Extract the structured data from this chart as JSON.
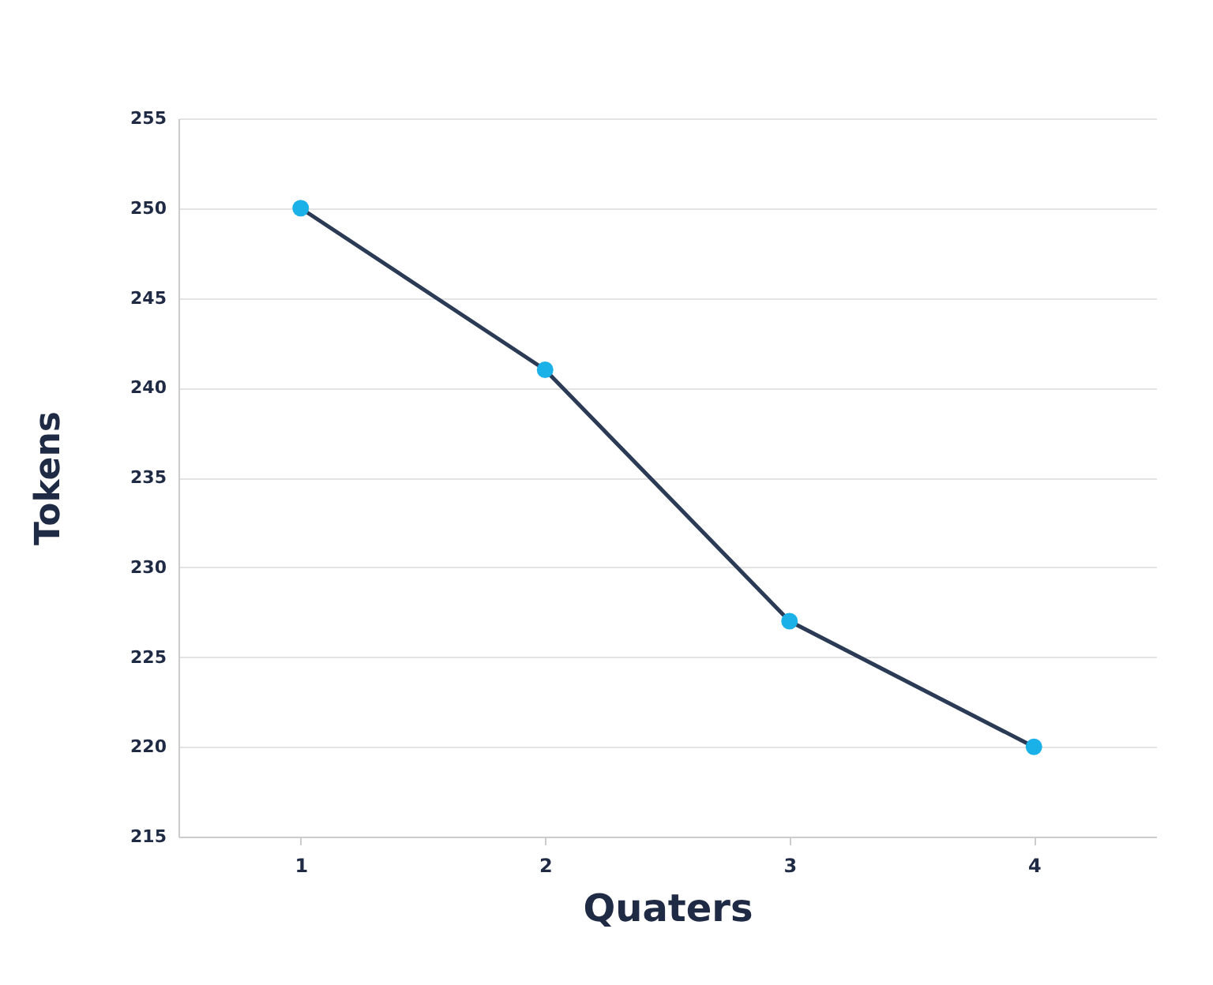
{
  "chart_data": {
    "type": "line",
    "xlabel": "Quaters",
    "ylabel": "Tokens",
    "categories": [
      "1",
      "2",
      "3",
      "4"
    ],
    "series": [
      {
        "color": "#2b3a55",
        "values": [
          250,
          241,
          227,
          220
        ]
      }
    ],
    "ylim": [
      215,
      255
    ],
    "yticks": [
      215,
      220,
      225,
      230,
      235,
      240,
      245,
      250,
      255
    ],
    "grid": "y",
    "marker": "circle"
  }
}
